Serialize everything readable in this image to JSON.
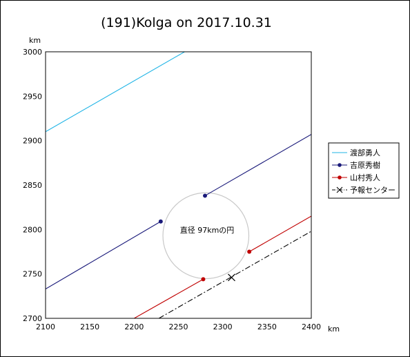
{
  "chart_data": {
    "type": "line",
    "title": "(191)Kolga on 2017.10.31",
    "x_unit": "km",
    "y_unit": "km",
    "xlim": [
      2100,
      2400
    ],
    "ylim": [
      2700,
      3000
    ],
    "x_ticks": [
      2100,
      2150,
      2200,
      2250,
      2300,
      2350,
      2400
    ],
    "y_ticks": [
      2700,
      2750,
      2800,
      2850,
      2900,
      2950,
      3000
    ],
    "grid": false,
    "legend_placement": "right",
    "annotation": "直径 97kmの円",
    "circle": {
      "cx": 2281,
      "cy": 2793,
      "r": 48.5
    },
    "series": [
      {
        "name": "渡部勇人",
        "color": "#1fb4e6",
        "style": "solid",
        "marker": "none",
        "segments": [
          {
            "x": [
              2100,
              2257
            ],
            "y": [
              2910,
              3000
            ]
          }
        ]
      },
      {
        "name": "吉原秀樹",
        "color": "#1a1a7a",
        "style": "solid",
        "marker": "dot",
        "segments": [
          {
            "x": [
              2100,
              2230
            ],
            "y": [
              2733,
              2809
            ],
            "end_marker": true
          },
          {
            "x": [
              2280,
              2400
            ],
            "y": [
              2838,
              2907
            ],
            "start_marker": true
          }
        ]
      },
      {
        "name": "山村秀人",
        "color": "#c00000",
        "style": "solid",
        "marker": "dot",
        "segments": [
          {
            "x": [
              2200,
              2278
            ],
            "y": [
              2700,
              2744
            ],
            "end_marker": true
          },
          {
            "x": [
              2330,
              2400
            ],
            "y": [
              2775,
              2815
            ],
            "start_marker": true
          }
        ]
      },
      {
        "name": "予報センター",
        "color": "#000000",
        "style": "dashdot",
        "marker": "cross",
        "segments": [
          {
            "x": [
              2228,
              2400
            ],
            "y": [
              2700,
              2798
            ]
          }
        ],
        "point": {
          "x": 2310,
          "y": 2746
        }
      }
    ]
  }
}
